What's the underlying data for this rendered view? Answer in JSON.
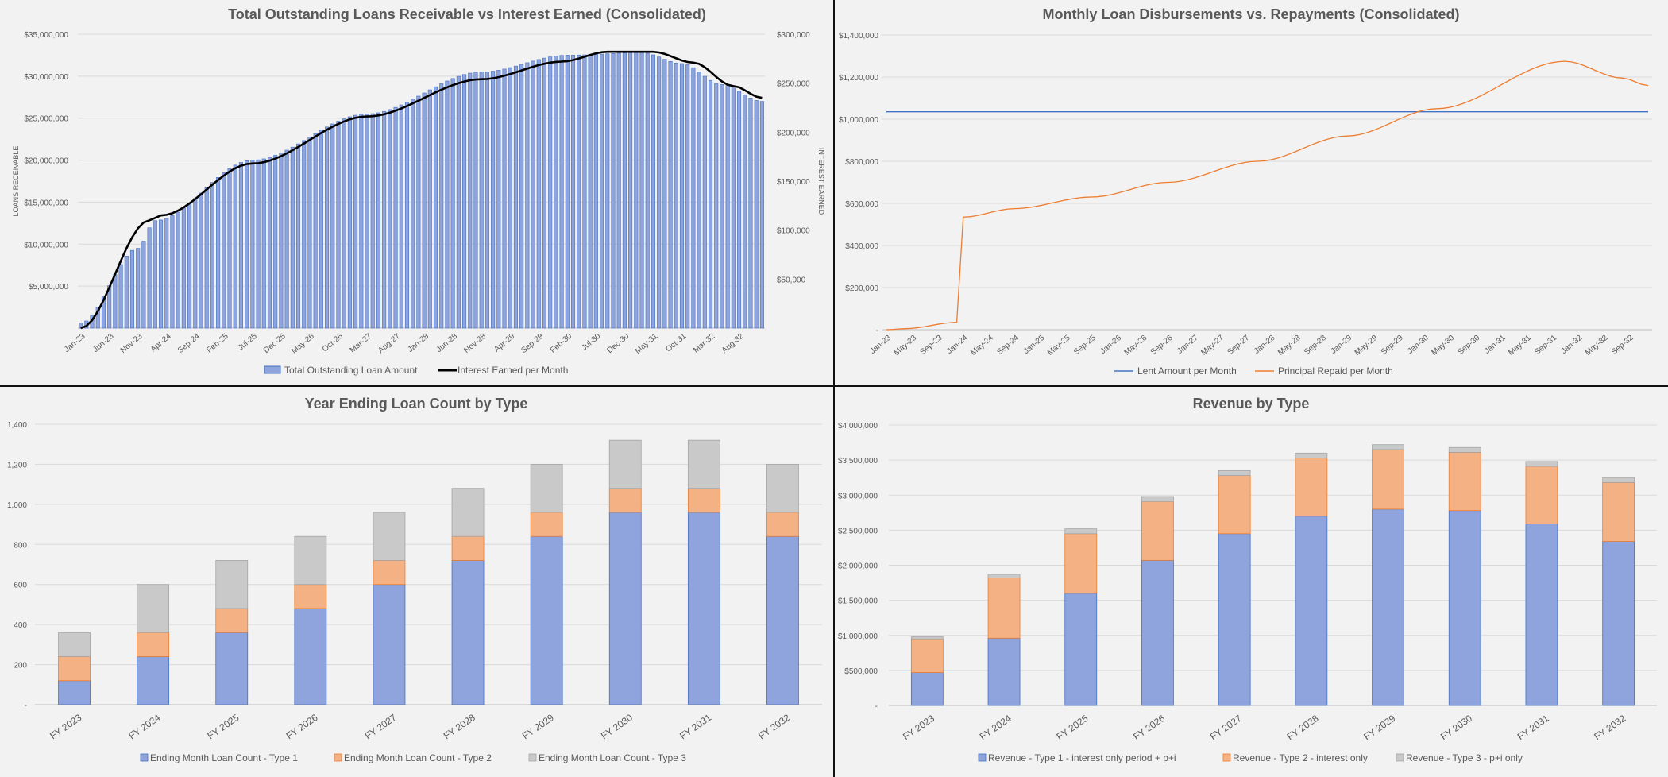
{
  "colors": {
    "type1_fill": "#8FA3DC",
    "type1_stroke": "#4472C4",
    "type2_fill": "#F4B183",
    "type2_stroke": "#ED7D31",
    "type3_fill": "#C9C9C9",
    "type3_stroke": "#A5A5A5",
    "lent_line": "#4472C4",
    "repaid_line": "#ED7D31",
    "interest_line": "#000000",
    "grid": "#D9D9D9",
    "text": "#595959"
  },
  "chart_data": [
    {
      "type": "bar",
      "title": "Total Outstanding Loans Receivable vs Interest Earned (Consolidated)",
      "ylabel": "LOANS RECEIVABLE",
      "y2label": "INTEREST EARNED",
      "ylim": [
        0,
        35000000
      ],
      "y2lim": [
        0,
        300000
      ],
      "ytick_labels": [
        "$5,000,000",
        "$10,000,000",
        "$15,000,000",
        "$20,000,000",
        "$25,000,000",
        "$30,000,000",
        "$35,000,000"
      ],
      "y2tick_labels": [
        "$50,000",
        "$100,000",
        "$150,000",
        "$200,000",
        "$250,000",
        "$300,000"
      ],
      "x_tick_labels": [
        "Jan-23",
        "Jun-23",
        "Nov-23",
        "Apr-24",
        "Sep-24",
        "Feb-25",
        "Jul-25",
        "Dec-25",
        "May-26",
        "Oct-26",
        "Mar-27",
        "Aug-27",
        "Jan-28",
        "Jun-28",
        "Nov-28",
        "Apr-29",
        "Sep-29",
        "Feb-30",
        "Jul-30",
        "Dec-30",
        "May-31",
        "Oct-31",
        "Mar-32",
        "Aug-32"
      ],
      "months": 120,
      "bar_anchors": [
        [
          0,
          600000
        ],
        [
          10,
          9500000
        ],
        [
          13,
          12800000
        ],
        [
          30,
          20000000
        ],
        [
          50,
          25500000
        ],
        [
          70,
          30500000
        ],
        [
          85,
          32500000
        ],
        [
          98,
          32800000
        ],
        [
          105,
          31500000
        ],
        [
          112,
          29000000
        ],
        [
          119,
          27000000
        ]
      ],
      "line_anchors": [
        [
          0,
          0
        ],
        [
          12,
          110000
        ],
        [
          14,
          115000
        ],
        [
          30,
          168000
        ],
        [
          50,
          216000
        ],
        [
          70,
          254000
        ],
        [
          84,
          272000
        ],
        [
          92,
          282000
        ],
        [
          100,
          282000
        ],
        [
          107,
          271000
        ],
        [
          114,
          247000
        ],
        [
          119,
          235000
        ]
      ],
      "series": [
        {
          "name": "Total Outstanding Loan Amount",
          "kind": "bar",
          "axis": "left"
        },
        {
          "name": "Interest Earned per Month",
          "kind": "line",
          "axis": "right"
        }
      ],
      "legend": "bottom"
    },
    {
      "type": "line",
      "title": "Monthly Loan Disbursements vs. Repayments (Consolidated)",
      "ylim": [
        0,
        1400000
      ],
      "ytick_labels": [
        "-",
        "$200,000",
        "$400,000",
        "$600,000",
        "$800,000",
        "$1,000,000",
        "$1,200,000",
        "$1,400,000"
      ],
      "x_tick_labels": [
        "Jan-23",
        "May-23",
        "Sep-23",
        "Jan-24",
        "May-24",
        "Sep-24",
        "Jan-25",
        "May-25",
        "Sep-25",
        "Jan-26",
        "May-26",
        "Sep-26",
        "Jan-27",
        "May-27",
        "Sep-27",
        "Jan-28",
        "May-28",
        "Sep-28",
        "Jan-29",
        "May-29",
        "Sep-29",
        "Jan-30",
        "May-30",
        "Sep-30",
        "Jan-31",
        "May-31",
        "Sep-31",
        "Jan-32",
        "May-32",
        "Sep-32"
      ],
      "months": 120,
      "series": [
        {
          "name": "Lent Amount per Month",
          "anchors": [
            [
              0,
              1035000
            ],
            [
              119,
              1035000
            ]
          ]
        },
        {
          "name": "Principal Repaid per Month",
          "anchors": [
            [
              0,
              0
            ],
            [
              3,
              5000
            ],
            [
              11,
              35000
            ],
            [
              12,
              535000
            ],
            [
              20,
              575000
            ],
            [
              32,
              630000
            ],
            [
              44,
              700000
            ],
            [
              58,
              800000
            ],
            [
              72,
              920000
            ],
            [
              86,
              1050000
            ],
            [
              106,
              1275000
            ],
            [
              115,
              1195000
            ],
            [
              119,
              1160000
            ]
          ]
        }
      ],
      "legend": "bottom"
    },
    {
      "type": "bar",
      "stacked": true,
      "title": "Year Ending Loan Count by Type",
      "ylim": [
        0,
        1400
      ],
      "ytick_labels": [
        "-",
        "200",
        "400",
        "600",
        "800",
        "1,000",
        "1,200",
        "1,400"
      ],
      "categories": [
        "FY 2023",
        "FY 2024",
        "FY 2025",
        "FY 2026",
        "FY 2027",
        "FY 2028",
        "FY 2029",
        "FY 2030",
        "FY 2031",
        "FY 2032"
      ],
      "series": [
        {
          "name": "Ending Month Loan Count - Type 1",
          "values": [
            120,
            240,
            360,
            480,
            600,
            720,
            840,
            960,
            960,
            840
          ]
        },
        {
          "name": "Ending Month Loan Count - Type 2",
          "values": [
            120,
            120,
            120,
            120,
            120,
            120,
            120,
            120,
            120,
            120
          ]
        },
        {
          "name": "Ending Month Loan Count - Type 3",
          "values": [
            120,
            240,
            240,
            240,
            240,
            240,
            240,
            240,
            240,
            240
          ]
        }
      ],
      "legend": "bottom"
    },
    {
      "type": "bar",
      "stacked": true,
      "title": "Revenue by Type",
      "ylim": [
        0,
        4000000
      ],
      "ytick_labels": [
        "-",
        "$500,000",
        "$1,000,000",
        "$1,500,000",
        "$2,000,000",
        "$2,500,000",
        "$3,000,000",
        "$3,500,000",
        "$4,000,000"
      ],
      "categories": [
        "FY 2023",
        "FY 2024",
        "FY 2025",
        "FY 2026",
        "FY 2027",
        "FY 2028",
        "FY 2029",
        "FY 2030",
        "FY 2031",
        "FY 2032"
      ],
      "series": [
        {
          "name": "Revenue - Type 1 - interest only period + p+i",
          "values": [
            470000,
            960000,
            1600000,
            2070000,
            2450000,
            2700000,
            2800000,
            2780000,
            2590000,
            2340000
          ]
        },
        {
          "name": "Revenue - Type 2 - interest only",
          "values": [
            480000,
            860000,
            850000,
            840000,
            830000,
            830000,
            850000,
            830000,
            820000,
            840000
          ]
        },
        {
          "name": "Revenue - Type 3 - p+i only",
          "values": [
            30000,
            50000,
            70000,
            70000,
            70000,
            70000,
            70000,
            70000,
            70000,
            70000
          ]
        }
      ],
      "legend": "bottom"
    }
  ]
}
